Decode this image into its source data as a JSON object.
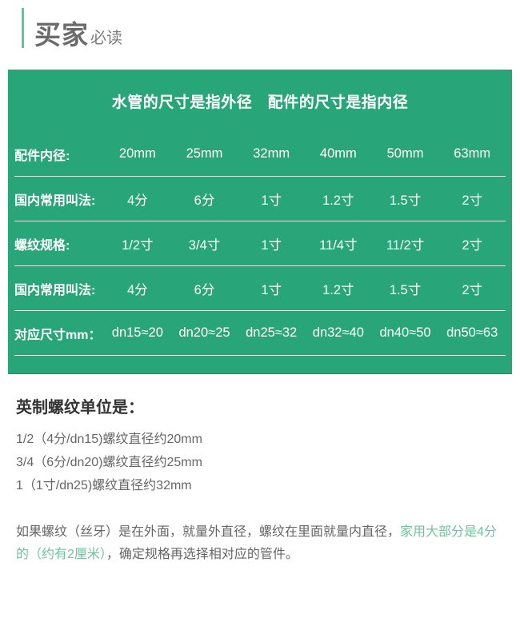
{
  "header": {
    "title_main": "买家",
    "title_sub": "必读"
  },
  "table": {
    "title": "水管的尺寸是指外径　配件的尺寸是指内径",
    "rows": [
      {
        "label": "配件内径:",
        "values": [
          "20mm",
          "25mm",
          "32mm",
          "40mm",
          "50mm",
          "63mm"
        ]
      },
      {
        "label": "国内常用叫法:",
        "values": [
          "4分",
          "6分",
          "1寸",
          "1.2寸",
          "1.5寸",
          "2寸"
        ]
      },
      {
        "label": "螺纹规格:",
        "values": [
          "1/2寸",
          "3/4寸",
          "1寸",
          "11/4寸",
          "11/2寸",
          "2寸"
        ]
      },
      {
        "label": "国内常用叫法:",
        "values": [
          "4分",
          "6分",
          "1寸",
          "1.2寸",
          "1.5寸",
          "2寸"
        ]
      },
      {
        "label": "对应尺寸mm：",
        "values": [
          "dn15≈20",
          "dn20≈25",
          "dn25≈32",
          "dn32≈40",
          "dn40≈50",
          "dn50≈63"
        ]
      }
    ]
  },
  "notes": {
    "heading": "英制螺纹单位是：",
    "lines": [
      "1/2（4分/dn15)螺纹直径约20mm",
      "3/4（6分/dn20)螺纹直径约25mm",
      "1（1寸/dn25)螺纹直径约32mm"
    ]
  },
  "footer": {
    "part1": "如果螺纹（丝牙）是在外面，就量外直径，螺纹在里面就量内直径，",
    "highlight": "家用大部分是4分的（约有2厘米）",
    "part2": "，确定规格再选择相对应的管件。"
  },
  "colors": {
    "table_green": "#29a57a",
    "accent_bar": "#56c9a2",
    "highlight_green": "#6fc49d"
  }
}
